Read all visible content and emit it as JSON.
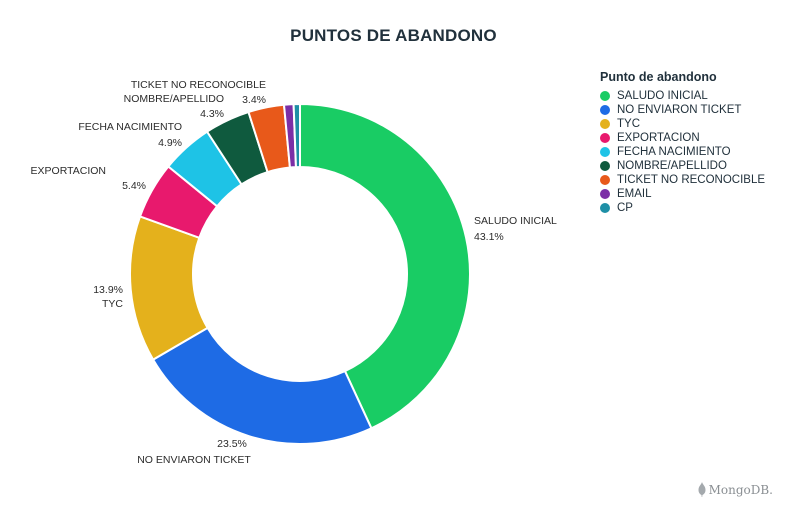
{
  "chart_data": {
    "type": "pie",
    "variant": "donut",
    "title": "PUNTOS DE ABANDONO",
    "legend_title": "Punto de abandono",
    "legend_position": "right",
    "slices": [
      {
        "label": "SALUDO INICIAL",
        "value": 43.1,
        "value_label": "43.1%",
        "color": "#19cc64"
      },
      {
        "label": "NO ENVIARON TICKET",
        "value": 23.5,
        "value_label": "23.5%",
        "color": "#1e6be5"
      },
      {
        "label": "TYC",
        "value": 13.9,
        "value_label": "13.9%",
        "color": "#e4b11c"
      },
      {
        "label": "EXPORTACION",
        "value": 5.4,
        "value_label": "5.4%",
        "color": "#e8196d"
      },
      {
        "label": "FECHA NACIMIENTO",
        "value": 4.9,
        "value_label": "4.9%",
        "color": "#1ec3e6"
      },
      {
        "label": "NOMBRE/APELLIDO",
        "value": 4.3,
        "value_label": "4.3%",
        "color": "#0f5a3e"
      },
      {
        "label": "TICKET NO RECONOCIBLE",
        "value": 3.4,
        "value_label": "3.4%",
        "color": "#e8591a"
      },
      {
        "label": "EMAIL",
        "value": 0.9,
        "value_label": "",
        "color": "#7b2fa6"
      },
      {
        "label": "CP",
        "value": 0.6,
        "value_label": "",
        "color": "#1e8fa6"
      }
    ]
  },
  "watermark": "MongoDB."
}
